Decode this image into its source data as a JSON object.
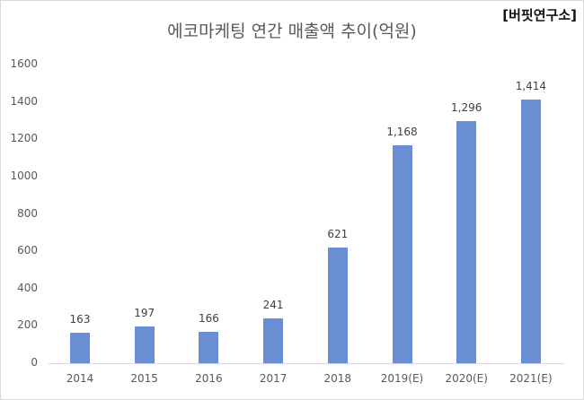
{
  "source_tag": "[버핏연구소]",
  "chart_data": {
    "type": "bar",
    "title": "에코마케팅 연간 매출액 추이(억원)",
    "xlabel": "",
    "ylabel": "",
    "categories": [
      "2014",
      "2015",
      "2016",
      "2017",
      "2018",
      "2019(E)",
      "2020(E)",
      "2021(E)"
    ],
    "values": [
      163,
      197,
      166,
      241,
      621,
      1168,
      1296,
      1414
    ],
    "data_labels": [
      "163",
      "197",
      "166",
      "241",
      "621",
      "1,168",
      "1,296",
      "1,414"
    ],
    "ylim": [
      0,
      1600
    ],
    "yticks": [
      "0",
      "200",
      "400",
      "600",
      "800",
      "1000",
      "1200",
      "1400",
      "1600"
    ],
    "grid": false,
    "legend": null,
    "bar_color": "#6a8fd2"
  }
}
